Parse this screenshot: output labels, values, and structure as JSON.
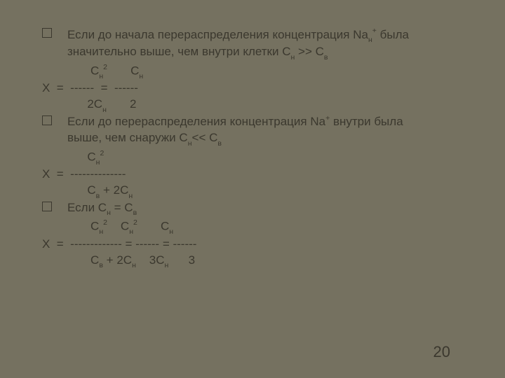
{
  "background_color": "#757160",
  "text_color": "#3b382e",
  "font_size_body": 17,
  "page_number": "20",
  "bullets": {
    "b1_line1": "Если до начала перераспределения концентрация Na",
    "b1_line1_tail": " была",
    "b1_line2a": "значительно выше, чем внутри клетки С",
    "b1_line2b": " >> С",
    "b2_line1a": "Если до перераспределения концентрация Na",
    "b2_line1b": " внутри была",
    "b2_line2a": "выше, чем снаружи С",
    "b2_line2b": "<< С",
    "b3a": "Если  С",
    "b3b": " =  С"
  },
  "eq": {
    "r1a": "       С",
    "r1b": "       С",
    "r2": "Х  =  ------  =  ------",
    "r3": "      2С",
    "r3b": "       2",
    "r4": "      С",
    "r5": "Х  =  --------------",
    "r6a": "      С",
    "r6b": " + 2С",
    "r7a": "       С",
    "r7b": "    С",
    "r7c": "       С",
    "r8": "Х  =  ------------- = ------ = ------",
    "r9a": "       С",
    "r9b": " + 2С",
    "r9c": "    3С",
    "r9d": "      3"
  }
}
